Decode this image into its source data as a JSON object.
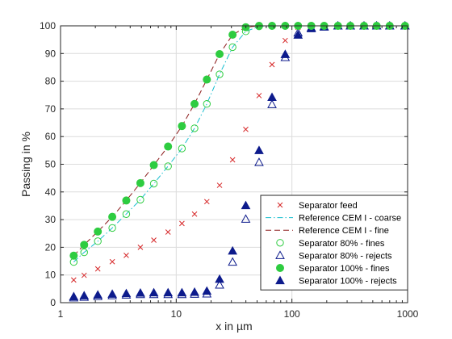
{
  "chart_data": {
    "type": "scatter",
    "title": "",
    "xlabel": "x in µm",
    "ylabel": "Passing in %",
    "xscale": "log",
    "xlim": [
      1,
      1000
    ],
    "ylim": [
      0,
      100
    ],
    "xticks": [
      1,
      10,
      100,
      1000
    ],
    "xtick_labels": [
      "1",
      "10",
      "100",
      "1000"
    ],
    "yticks": [
      0,
      10,
      20,
      30,
      40,
      50,
      60,
      70,
      80,
      90,
      100
    ],
    "ytick_labels": [
      "0",
      "10",
      "20",
      "30",
      "40",
      "50",
      "60",
      "70",
      "80",
      "90",
      "100"
    ],
    "grid": true,
    "legend_position": "bottom-right",
    "series": [
      {
        "name": "Separator feed",
        "marker": "x",
        "color": "#d62728",
        "points": [
          [
            1.3,
            8.2
          ],
          [
            1.6,
            9.9
          ],
          [
            2.1,
            12.2
          ],
          [
            2.8,
            14.8
          ],
          [
            3.7,
            17.1
          ],
          [
            4.9,
            20.0
          ],
          [
            6.4,
            22.6
          ],
          [
            8.5,
            25.5
          ],
          [
            11.2,
            28.6
          ],
          [
            14.4,
            32.0
          ],
          [
            18.4,
            36.5
          ],
          [
            23.7,
            42.4
          ],
          [
            30.7,
            51.6
          ],
          [
            39.9,
            62.6
          ],
          [
            52.0,
            74.8
          ],
          [
            67.3,
            86.0
          ],
          [
            87.5,
            94.7
          ],
          [
            113.0,
            99.5
          ],
          [
            147.0,
            99.9
          ],
          [
            190.0,
            100
          ],
          [
            250.0,
            100
          ],
          [
            320.0,
            100
          ],
          [
            420.0,
            100
          ],
          [
            540.0,
            100
          ],
          [
            700.0,
            100
          ],
          [
            950.0,
            100
          ]
        ]
      },
      {
        "name": "Reference CEM I - coarse",
        "marker": "line-dashdot",
        "color": "#17becf",
        "points": [
          [
            1.3,
            14.7
          ],
          [
            1.6,
            18.2
          ],
          [
            2.1,
            22.2
          ],
          [
            2.8,
            27.0
          ],
          [
            3.7,
            32.0
          ],
          [
            4.9,
            37.2
          ],
          [
            6.4,
            43.0
          ],
          [
            8.5,
            49.3
          ],
          [
            11.2,
            55.7
          ],
          [
            14.4,
            63.0
          ],
          [
            18.4,
            71.8
          ],
          [
            23.7,
            82.5
          ],
          [
            30.7,
            92.3
          ],
          [
            39.9,
            98.0
          ],
          [
            52.0,
            99.8
          ],
          [
            67.3,
            100
          ],
          [
            87.5,
            100
          ],
          [
            113.0,
            100
          ],
          [
            147.0,
            100
          ]
        ]
      },
      {
        "name": "Reference CEM I - fine",
        "marker": "line-dash",
        "color": "#8b1a1a",
        "points": [
          [
            1.3,
            17.0
          ],
          [
            1.6,
            20.9
          ],
          [
            2.1,
            25.7
          ],
          [
            2.8,
            31.0
          ],
          [
            3.7,
            36.9
          ],
          [
            4.9,
            43.2
          ],
          [
            6.4,
            49.7
          ],
          [
            8.5,
            56.4
          ],
          [
            11.2,
            63.8
          ],
          [
            14.4,
            71.8
          ],
          [
            18.4,
            80.6
          ],
          [
            23.7,
            89.8
          ],
          [
            30.7,
            96.8
          ],
          [
            39.9,
            99.5
          ],
          [
            52.0,
            100
          ],
          [
            67.3,
            100
          ],
          [
            87.5,
            100
          ],
          [
            113.0,
            100
          ],
          [
            147.0,
            100
          ]
        ]
      },
      {
        "name": "Separator 80% - fines",
        "marker": "circle-open",
        "color": "#2ecc40",
        "points": [
          [
            1.3,
            14.7
          ],
          [
            1.6,
            18.2
          ],
          [
            2.1,
            22.2
          ],
          [
            2.8,
            27.0
          ],
          [
            3.7,
            32.0
          ],
          [
            4.9,
            37.2
          ],
          [
            6.4,
            43.0
          ],
          [
            8.5,
            49.3
          ],
          [
            11.2,
            55.7
          ],
          [
            14.4,
            63.0
          ],
          [
            18.4,
            71.8
          ],
          [
            23.7,
            82.5
          ],
          [
            30.7,
            92.3
          ],
          [
            39.9,
            98.0
          ],
          [
            52.0,
            99.8
          ],
          [
            67.3,
            100
          ],
          [
            87.5,
            100
          ],
          [
            113.0,
            100
          ],
          [
            147.0,
            100
          ],
          [
            190.0,
            100
          ],
          [
            250.0,
            100
          ],
          [
            320.0,
            100
          ],
          [
            420.0,
            100
          ],
          [
            540.0,
            100
          ],
          [
            700.0,
            100
          ],
          [
            950.0,
            100
          ]
        ]
      },
      {
        "name": "Separator 80% - rejects",
        "marker": "triangle-open",
        "color": "#0d1b8c",
        "points": [
          [
            1.3,
            1.8
          ],
          [
            1.6,
            2.0
          ],
          [
            2.1,
            2.3
          ],
          [
            2.8,
            2.6
          ],
          [
            3.7,
            2.8
          ],
          [
            4.9,
            3.0
          ],
          [
            6.4,
            3.0
          ],
          [
            8.5,
            3.0
          ],
          [
            11.2,
            3.0
          ],
          [
            14.4,
            3.1
          ],
          [
            18.4,
            3.2
          ],
          [
            23.7,
            6.4
          ],
          [
            30.7,
            14.7
          ],
          [
            39.9,
            30.2
          ],
          [
            52.0,
            50.7
          ],
          [
            67.3,
            71.6
          ],
          [
            87.5,
            88.6
          ],
          [
            113.0,
            97.5
          ],
          [
            147.0,
            99.3
          ],
          [
            190.0,
            99.7
          ],
          [
            250.0,
            100
          ],
          [
            320.0,
            100
          ],
          [
            420.0,
            100
          ],
          [
            540.0,
            100
          ],
          [
            700.0,
            100
          ],
          [
            950.0,
            100
          ]
        ]
      },
      {
        "name": "Separator 100% - fines",
        "marker": "circle-filled",
        "color": "#2ecc40",
        "points": [
          [
            1.3,
            17.0
          ],
          [
            1.6,
            20.9
          ],
          [
            2.1,
            25.7
          ],
          [
            2.8,
            31.0
          ],
          [
            3.7,
            36.9
          ],
          [
            4.9,
            43.2
          ],
          [
            6.4,
            49.7
          ],
          [
            8.5,
            56.4
          ],
          [
            11.2,
            63.8
          ],
          [
            14.4,
            71.8
          ],
          [
            18.4,
            80.6
          ],
          [
            23.7,
            89.8
          ],
          [
            30.7,
            96.8
          ],
          [
            39.9,
            99.5
          ],
          [
            52.0,
            100
          ],
          [
            67.3,
            100
          ],
          [
            87.5,
            100
          ],
          [
            113.0,
            100
          ],
          [
            147.0,
            100
          ],
          [
            190.0,
            100
          ],
          [
            250.0,
            100
          ],
          [
            320.0,
            100
          ],
          [
            420.0,
            100
          ],
          [
            540.0,
            100
          ],
          [
            700.0,
            100
          ],
          [
            950.0,
            100
          ]
        ]
      },
      {
        "name": "Separator 100% - rejects",
        "marker": "triangle-filled",
        "color": "#0d1b8c",
        "points": [
          [
            1.3,
            2.2
          ],
          [
            1.6,
            2.5
          ],
          [
            2.1,
            2.8
          ],
          [
            2.8,
            3.1
          ],
          [
            3.7,
            3.3
          ],
          [
            4.9,
            3.5
          ],
          [
            6.4,
            3.6
          ],
          [
            8.5,
            3.6
          ],
          [
            11.2,
            3.6
          ],
          [
            14.4,
            3.8
          ],
          [
            18.4,
            4.2
          ],
          [
            23.7,
            8.5
          ],
          [
            30.7,
            18.7
          ],
          [
            39.9,
            35.1
          ],
          [
            52.0,
            55.0
          ],
          [
            67.3,
            74.2
          ],
          [
            87.5,
            89.7
          ],
          [
            113.0,
            96.7
          ],
          [
            147.0,
            99.0
          ],
          [
            190.0,
            99.6
          ],
          [
            250.0,
            100
          ],
          [
            320.0,
            100
          ],
          [
            420.0,
            100
          ],
          [
            540.0,
            100
          ],
          [
            700.0,
            100
          ],
          [
            950.0,
            100
          ]
        ]
      }
    ]
  }
}
